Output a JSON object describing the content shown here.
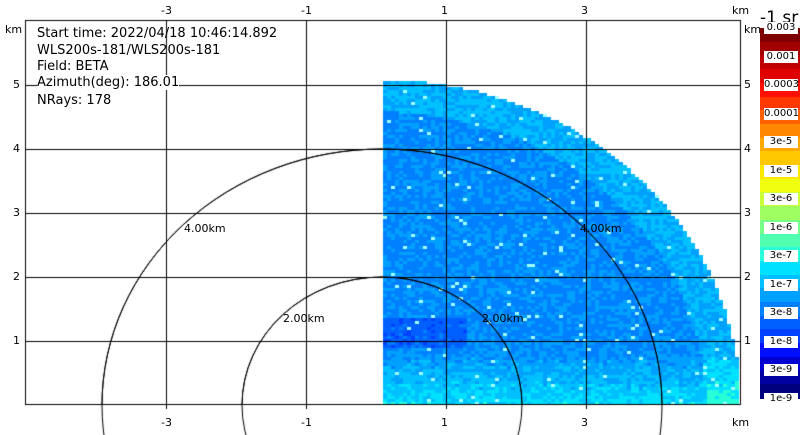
{
  "info": {
    "start_time": "Start time: 2022/04/18 10:46:14.892",
    "instrument": "WLS200s-181/WLS200s-181",
    "field": "Field: BETA",
    "azimuth": "Azimuth(deg): 186.01",
    "nrays": "NRays: 178"
  },
  "axes": {
    "x_unit": "km",
    "y_unit": "km",
    "x_ticks": [
      "-3",
      "-1",
      "1",
      "3"
    ],
    "y_ticks": [
      "5",
      "4",
      "3",
      "2",
      "1"
    ]
  },
  "range_rings": [
    "2.00km",
    "4.00km"
  ],
  "colorbar": {
    "title": "-1 sr",
    "labels": [
      "0.003",
      "0.001",
      "0.0003",
      "0.0001",
      "3e-5",
      "1e-5",
      "3e-6",
      "1e-6",
      "3e-7",
      "1e-7",
      "3e-8",
      "1e-8",
      "3e-9",
      "1e-9"
    ],
    "colors": [
      "#7f0000",
      "#a00000",
      "#c00000",
      "#e00000",
      "#ff1000",
      "#ff3800",
      "#ff6000",
      "#ff8800",
      "#ffa800",
      "#ffc800",
      "#ffe800",
      "#f0ff10",
      "#c8ff38",
      "#a0ff60",
      "#78ff88",
      "#50ffb0",
      "#28ffd8",
      "#00e0ff",
      "#00c0ff",
      "#00a0ff",
      "#0080ff",
      "#0060ff",
      "#0040ff",
      "#0010ff",
      "#0000d0",
      "#0000a0",
      "#00007f"
    ]
  }
}
